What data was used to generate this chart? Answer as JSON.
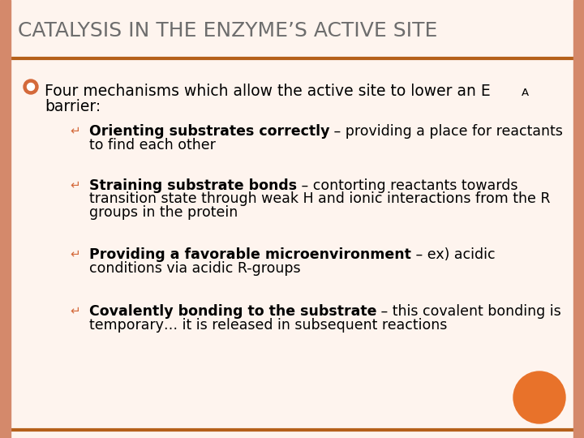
{
  "title": "CATALYSIS IN THE ENZYME’S ACTIVE SITE",
  "title_fontsize": 18,
  "title_color": "#6d6d6d",
  "bg_color": "#fef4ee",
  "slide_border_color": "#d4896b",
  "line_color": "#b5601a",
  "bullet_color": "#d4693a",
  "orange_circle_color": "#e8722a",
  "font_family": "DejaVu Sans",
  "main_fontsize": 13.5,
  "sub_fontsize": 12.5,
  "sub_bullet_symbol": "↵",
  "main_bullet_text": "Four mechanisms which allow the active site to lower an E",
  "main_bullet_A": "A",
  "main_bullet_text2": "barrier:",
  "sub_bullets": [
    {
      "bold": "Orienting substrates correctly",
      "normal": " – providing a place for reactants\nto find each other"
    },
    {
      "bold": "Straining substrate bonds",
      "normal": " – contorting reactants towards\ntransition state through weak H and ionic interactions from the R\ngroups in the protein"
    },
    {
      "bold": "Providing a favorable microenvironment",
      "normal": " – ex) acidic\nconditions via acidic R-groups"
    },
    {
      "bold": "Covalently bonding to the substrate",
      "normal": " – this covalent bonding is\ntemporary… it is released in subsequent reactions"
    }
  ]
}
